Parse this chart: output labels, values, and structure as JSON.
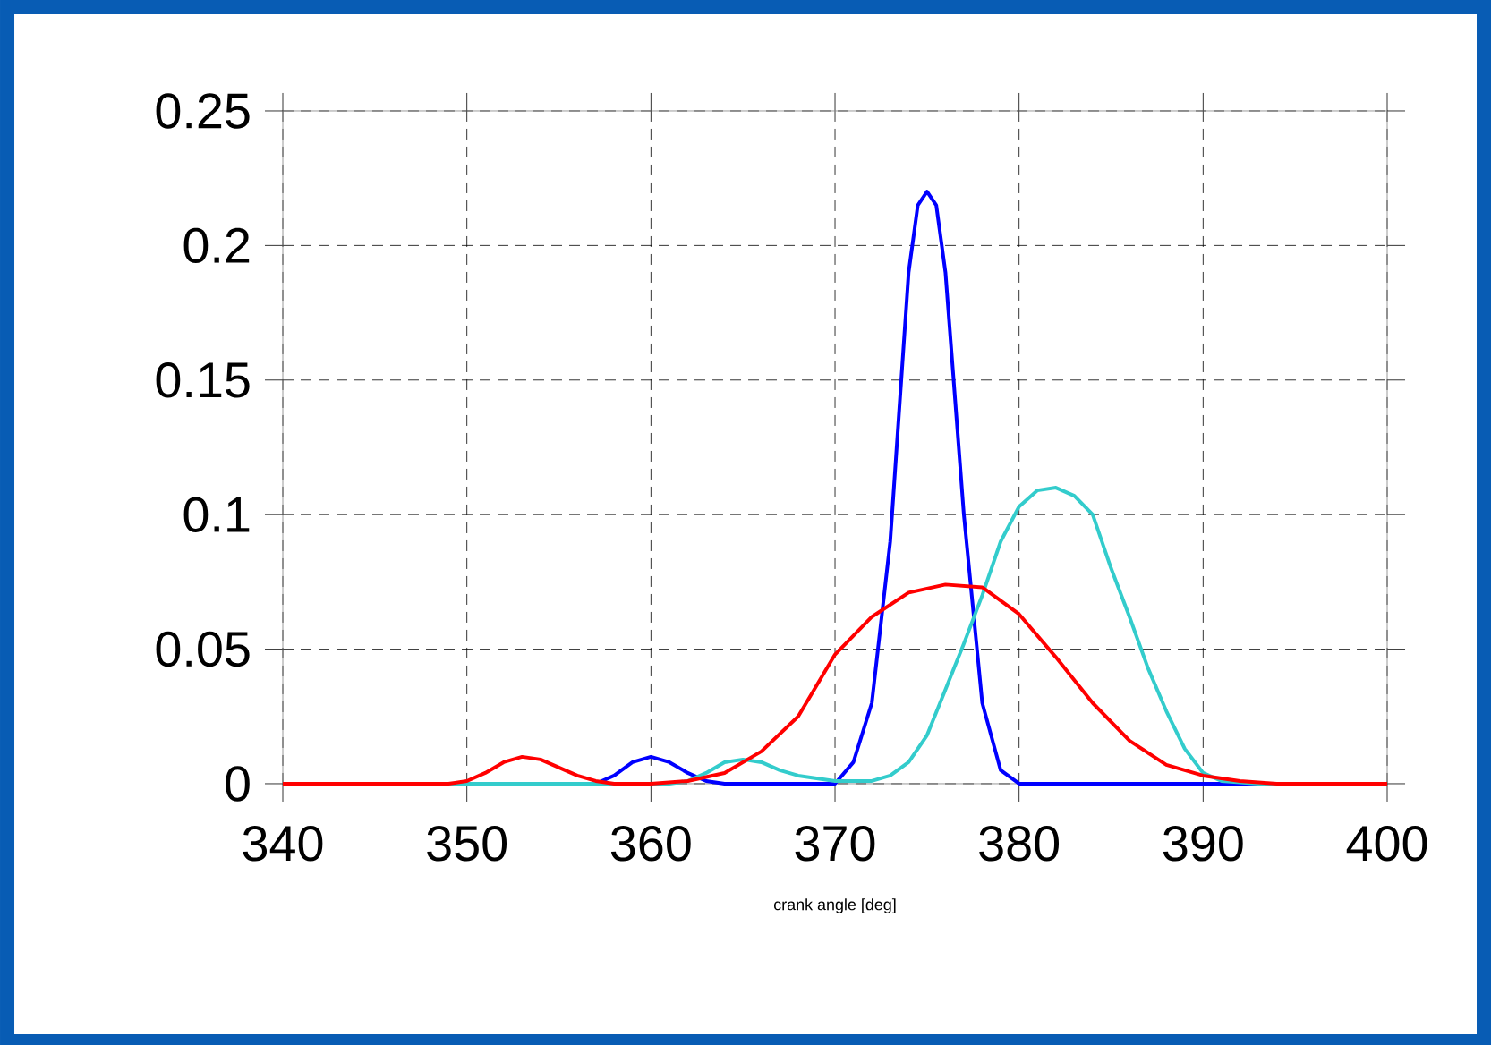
{
  "chart_data": {
    "type": "line",
    "xlabel": "crank angle  [deg]",
    "xlim": [
      340,
      400
    ],
    "xticks": [
      340,
      350,
      360,
      370,
      380,
      390,
      400
    ],
    "ylim": [
      0,
      0.25
    ],
    "yticks": [
      0,
      0.05,
      0.1,
      0.15,
      0.2,
      0.25
    ],
    "grid": true,
    "series": [
      {
        "color": "#0000ff",
        "x": [
          340,
          350,
          357,
          358,
          359,
          360,
          361,
          362,
          363,
          364,
          370,
          371,
          372,
          373,
          374,
          374.5,
          375,
          375.5,
          376,
          377,
          378,
          379,
          380,
          390,
          400
        ],
        "values": [
          0,
          0,
          0,
          0.003,
          0.008,
          0.01,
          0.008,
          0.004,
          0.001,
          0,
          0,
          0.008,
          0.03,
          0.09,
          0.19,
          0.215,
          0.22,
          0.215,
          0.19,
          0.1,
          0.03,
          0.005,
          0,
          0,
          0
        ]
      },
      {
        "color": "#33cccc",
        "x": [
          340,
          350,
          361,
          362,
          363,
          364,
          365,
          366,
          367,
          368,
          370,
          372,
          373,
          374,
          375,
          376,
          377,
          378,
          379,
          380,
          381,
          382,
          383,
          384,
          385,
          386,
          387,
          388,
          389,
          390,
          391,
          393,
          400
        ],
        "values": [
          0,
          0,
          0,
          0.001,
          0.004,
          0.008,
          0.009,
          0.008,
          0.005,
          0.003,
          0.001,
          0.001,
          0.003,
          0.008,
          0.018,
          0.035,
          0.052,
          0.07,
          0.09,
          0.103,
          0.109,
          0.11,
          0.107,
          0.1,
          0.08,
          0.062,
          0.043,
          0.027,
          0.013,
          0.004,
          0.001,
          0,
          0
        ]
      },
      {
        "color": "#ff0000",
        "x": [
          340,
          349,
          350,
          351,
          352,
          353,
          354,
          355,
          356,
          357,
          358,
          360,
          362,
          364,
          366,
          368,
          370,
          372,
          374,
          376,
          378,
          380,
          382,
          384,
          386,
          388,
          390,
          392,
          394,
          400
        ],
        "values": [
          0,
          0,
          0.001,
          0.004,
          0.008,
          0.01,
          0.009,
          0.006,
          0.003,
          0.001,
          0,
          0,
          0.001,
          0.004,
          0.012,
          0.025,
          0.048,
          0.062,
          0.071,
          0.074,
          0.073,
          0.063,
          0.047,
          0.03,
          0.016,
          0.007,
          0.003,
          0.001,
          0,
          0
        ]
      }
    ]
  }
}
